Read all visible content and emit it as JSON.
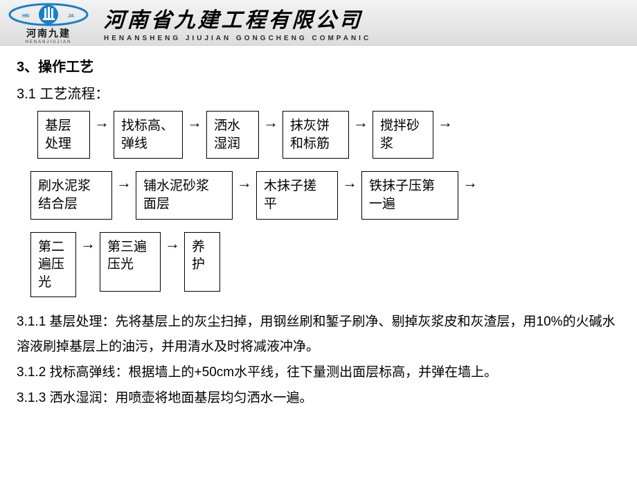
{
  "header": {
    "logo_text": "河南九建",
    "logo_pinyin": "HENANJIUJIAN",
    "logo_inner": "HNJA",
    "company_title": "河南省九建工程有限公司",
    "company_pinyin": "HENANSHENG JIUJIAN GONGCHENG COMPANIC",
    "logo_color": "#1a7fc7",
    "bg_top": "#f3f3f3",
    "bg_bottom": "#dcdcdc"
  },
  "section": {
    "heading": "3、操作工艺",
    "subheading": "3.1  工艺流程：",
    "arrow": "→"
  },
  "flow": {
    "row1": [
      {
        "label": "基层\n处理",
        "w": 76
      },
      {
        "label": "找标高、\n弹线",
        "w": 100
      },
      {
        "label": "洒水\n湿润",
        "w": 76
      },
      {
        "label": "抹灰饼\n和标筋",
        "w": 96
      },
      {
        "label": "搅拌砂\n浆",
        "w": 88
      }
    ],
    "row1_trailing_arrow": true,
    "row2": [
      {
        "label": "刷水泥浆\n结合层",
        "w": 118
      },
      {
        "label": "铺水泥砂浆\n面层",
        "w": 140
      },
      {
        "label": "木抹子搓\n平",
        "w": 118
      },
      {
        "label": "铁抹子压第\n一遍",
        "w": 140
      }
    ],
    "row2_trailing_arrow": true,
    "row3": [
      {
        "label": "第二\n遍压\n光",
        "w": 66,
        "h": 86
      },
      {
        "label": "第三遍\n压光",
        "w": 88,
        "h": 86
      },
      {
        "label": "养\n护",
        "w": 52,
        "h": 86
      }
    ],
    "row3_trailing_arrow": false
  },
  "paragraphs": {
    "p1": "3.1.1  基层处理：先将基层上的灰尘扫掉，用钢丝刷和錾子刷净、剔掉灰浆皮和灰渣层，用10%的火碱水溶液刷掉基层上的油污，并用清水及时将减液冲净。",
    "p2": "3.1.2  找标高弹线：根据墙上的+50cm水平线，往下量测出面层标高，并弹在墙上。",
    "p3": "3.1.3  洒水湿润：用喷壶将地面基层均匀洒水一遍。"
  },
  "colors": {
    "text": "#000000",
    "border": "#000000",
    "page_bg": "#ffffff"
  }
}
